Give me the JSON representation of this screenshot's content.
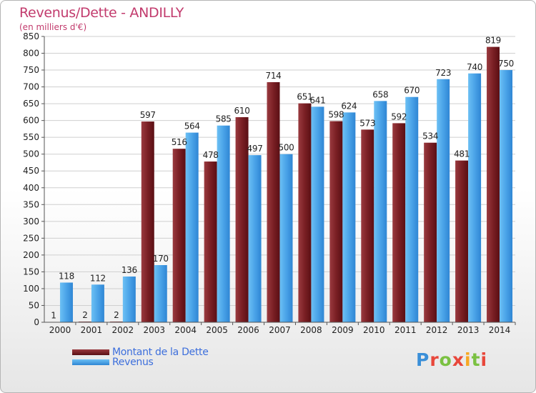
{
  "title": "Revenus/Dette - ANDILLY",
  "subtitle": "(en milliers d'€)",
  "brand": {
    "text": "Proxiti",
    "colors": [
      "#3a8fd8",
      "#e8473b",
      "#7bc142",
      "#f7a823"
    ]
  },
  "chart_data": {
    "type": "bar",
    "categories": [
      "2000",
      "2001",
      "2002",
      "2003",
      "2004",
      "2005",
      "2006",
      "2007",
      "2008",
      "2009",
      "2010",
      "2011",
      "2012",
      "2013",
      "2014"
    ],
    "series": [
      {
        "name": "Montant de la Dette",
        "color": "#7a1f24",
        "values": [
          1,
          2,
          2,
          597,
          516,
          478,
          610,
          714,
          651,
          598,
          573,
          592,
          534,
          481,
          819
        ]
      },
      {
        "name": "Revenus",
        "color": "#4aa3e8",
        "values": [
          118,
          112,
          136,
          170,
          564,
          585,
          497,
          500,
          641,
          624,
          658,
          670,
          723,
          740,
          750
        ]
      }
    ],
    "ylim": [
      0,
      850
    ],
    "yticks": [
      0,
      50,
      100,
      150,
      200,
      250,
      300,
      350,
      400,
      450,
      500,
      550,
      600,
      650,
      700,
      750,
      800,
      850
    ],
    "grid": true,
    "legend_position": "bottom-left"
  }
}
